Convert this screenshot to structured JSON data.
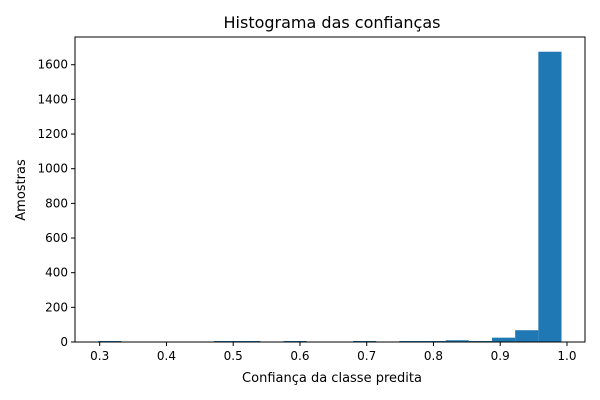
{
  "chart_data": {
    "type": "bar",
    "title": "Histograma das confianças",
    "xlabel": "Confiança da classe predita",
    "ylabel": "Amostras",
    "xlim": [
      0.263,
      1.027
    ],
    "ylim": [
      0,
      1760
    ],
    "x_ticks": [
      0.3,
      0.4,
      0.5,
      0.6,
      0.7,
      0.8,
      0.9,
      1.0
    ],
    "x_tick_labels": [
      "0.3",
      "0.4",
      "0.5",
      "0.6",
      "0.7",
      "0.8",
      "0.9",
      "1.0"
    ],
    "y_ticks": [
      0,
      200,
      400,
      600,
      800,
      1000,
      1200,
      1400,
      1600
    ],
    "y_tick_labels": [
      "0",
      "200",
      "400",
      "600",
      "800",
      "1000",
      "1200",
      "1400",
      "1600"
    ],
    "bar_color": "#1f77b4",
    "bins": [
      {
        "x0": 0.2978,
        "x1": 0.3325,
        "count": 5
      },
      {
        "x0": 0.3325,
        "x1": 0.3672,
        "count": 0
      },
      {
        "x0": 0.3672,
        "x1": 0.4019,
        "count": 0
      },
      {
        "x0": 0.4019,
        "x1": 0.4366,
        "count": 0
      },
      {
        "x0": 0.4366,
        "x1": 0.4713,
        "count": 0
      },
      {
        "x0": 0.4713,
        "x1": 0.506,
        "count": 4
      },
      {
        "x0": 0.506,
        "x1": 0.5407,
        "count": 4
      },
      {
        "x0": 0.5407,
        "x1": 0.5754,
        "count": 0
      },
      {
        "x0": 0.5754,
        "x1": 0.6101,
        "count": 4
      },
      {
        "x0": 0.6101,
        "x1": 0.6448,
        "count": 0
      },
      {
        "x0": 0.6448,
        "x1": 0.6795,
        "count": 0
      },
      {
        "x0": 0.6795,
        "x1": 0.7142,
        "count": 4
      },
      {
        "x0": 0.7142,
        "x1": 0.7489,
        "count": 0
      },
      {
        "x0": 0.7489,
        "x1": 0.7836,
        "count": 4
      },
      {
        "x0": 0.7836,
        "x1": 0.8183,
        "count": 4
      },
      {
        "x0": 0.8183,
        "x1": 0.853,
        "count": 10
      },
      {
        "x0": 0.853,
        "x1": 0.8877,
        "count": 4
      },
      {
        "x0": 0.8877,
        "x1": 0.9224,
        "count": 25
      },
      {
        "x0": 0.9224,
        "x1": 0.9571,
        "count": 68
      },
      {
        "x0": 0.9571,
        "x1": 0.9918,
        "count": 1675
      }
    ]
  }
}
